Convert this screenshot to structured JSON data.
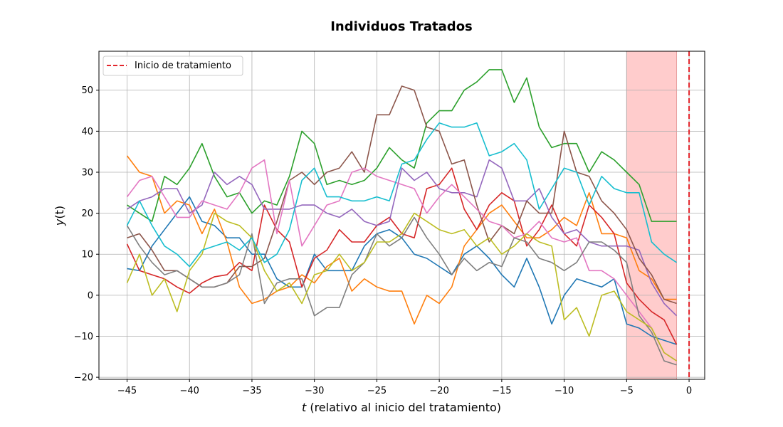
{
  "chart_data": {
    "type": "line",
    "title": "Individuos Tratados",
    "xlabel_var": "t",
    "xlabel_rest": " (relativo al inicio del tratamiento)",
    "ylabel_var": "y",
    "ylabel_rest": "(t)",
    "xlim": [
      -47.25,
      1.25
    ],
    "ylim": [
      -20.5,
      59.5
    ],
    "xticks": [
      -45,
      -40,
      -35,
      -30,
      -25,
      -20,
      -15,
      -10,
      -5,
      0
    ],
    "xtick_labels": [
      "−45",
      "−40",
      "−35",
      "−30",
      "−25",
      "−20",
      "−15",
      "−10",
      "−5",
      "0"
    ],
    "yticks": [
      -20,
      -10,
      0,
      10,
      20,
      30,
      40,
      50
    ],
    "ytick_labels": [
      "−20",
      "−10",
      "0",
      "10",
      "20",
      "30",
      "40",
      "50"
    ],
    "grid": true,
    "legend": {
      "placement": "top-left",
      "entries": [
        "Inicio de tratamiento"
      ]
    },
    "treatment_line": {
      "x": 0,
      "color": "#e3262c",
      "style": "dashed",
      "label": "Inicio de tratamiento"
    },
    "shaded_region": {
      "x": [
        -5,
        -1
      ],
      "color": "#ffcccc"
    },
    "x": [
      -45,
      -44,
      -43,
      -42,
      -41,
      -40,
      -39,
      -38,
      -37,
      -36,
      -35,
      -34,
      -33,
      -32,
      -31,
      -30,
      -29,
      -28,
      -27,
      -26,
      -25,
      -24,
      -23,
      -22,
      -21,
      -20,
      -19,
      -18,
      -17,
      -16,
      -15,
      -14,
      -13,
      -12,
      -11,
      -10,
      -9,
      -8,
      -7,
      -6,
      -5,
      -4,
      -3,
      -2,
      -1
    ],
    "series": [
      {
        "color": "#1f77b4",
        "values": [
          6.5,
          6,
          12,
          16,
          20,
          24,
          18,
          17,
          14,
          14,
          10,
          10,
          4,
          2,
          2,
          10,
          6,
          6,
          6,
          12,
          15,
          16,
          14,
          10,
          9,
          7,
          5,
          10,
          12,
          9,
          5,
          2,
          9,
          2,
          -7,
          0,
          4,
          3,
          2,
          4,
          -7,
          -8,
          -10,
          -11,
          -12
        ]
      },
      {
        "color": "#ff7f0e",
        "values": [
          34,
          30,
          29,
          20,
          23,
          22,
          15,
          21,
          13,
          2,
          -2,
          -1,
          1,
          2,
          5,
          3,
          7,
          9,
          1,
          4,
          2,
          1,
          1,
          -7,
          0,
          -2,
          2,
          12,
          16,
          20,
          22,
          18,
          14,
          14,
          16,
          19,
          17,
          25,
          15,
          15,
          14,
          6,
          4,
          -1,
          -1
        ]
      },
      {
        "color": "#2ca02c",
        "values": [
          22,
          20,
          18,
          29,
          27,
          31,
          37,
          29,
          24,
          25,
          20,
          23,
          22,
          29,
          40,
          37,
          27,
          28,
          27,
          28,
          31,
          36,
          33,
          31,
          42,
          45,
          45,
          50,
          52,
          55,
          55,
          47,
          53,
          41,
          36,
          37,
          37,
          30,
          35,
          33,
          30,
          27,
          18,
          18,
          18
        ]
      },
      {
        "color": "#d62728",
        "values": [
          12.5,
          6,
          5,
          4,
          2,
          0.5,
          3,
          4.5,
          5,
          8,
          6,
          22,
          16,
          13,
          2,
          9,
          11,
          16,
          13,
          13,
          17,
          19,
          15,
          14,
          26,
          27,
          31,
          21,
          16,
          22,
          25,
          23,
          12,
          16,
          22,
          15,
          12,
          22,
          19,
          15,
          3,
          -1,
          -4,
          -6,
          -12
        ]
      },
      {
        "color": "#9467bd",
        "values": [
          21,
          23,
          24,
          26,
          26,
          20,
          22,
          30,
          27,
          29,
          27,
          21,
          21,
          21,
          22,
          22,
          20,
          19,
          21,
          18,
          17,
          18,
          31,
          28,
          30,
          26,
          25,
          25,
          24,
          33,
          31,
          23,
          23,
          26,
          19,
          15,
          16,
          13,
          12,
          12,
          12,
          11,
          3,
          -2,
          -5
        ]
      },
      {
        "color": "#8c564b",
        "values": [
          14,
          15,
          11,
          6,
          6,
          4,
          2,
          2,
          3,
          7,
          7,
          9,
          18,
          28,
          30,
          27,
          30,
          31,
          35,
          30,
          44,
          44,
          51,
          50,
          41,
          40,
          32,
          33,
          22,
          13,
          17,
          15,
          23,
          20,
          20,
          40,
          30,
          29,
          23,
          20,
          16,
          9,
          5,
          -1,
          -2
        ]
      },
      {
        "color": "#e377c2",
        "values": [
          24,
          28,
          29,
          24,
          19,
          19,
          23,
          22,
          21,
          25,
          31,
          33,
          15,
          28,
          12,
          17,
          22,
          23,
          30,
          31,
          29,
          28,
          27,
          26,
          20,
          24,
          27,
          24,
          21,
          18,
          17,
          14,
          15,
          18,
          14,
          13,
          14,
          6,
          6,
          4,
          0,
          -4,
          -8,
          -14,
          -16
        ]
      },
      {
        "color": "#7f7f7f",
        "values": [
          17,
          12,
          8,
          5,
          6,
          4,
          2,
          2,
          3,
          5,
          15,
          -2,
          3,
          4,
          4,
          -5,
          -3,
          -3,
          5,
          8,
          15,
          12,
          14,
          19,
          14,
          10,
          5,
          9,
          6,
          8,
          7,
          14,
          13,
          9,
          8,
          6,
          8,
          13,
          13,
          11,
          8,
          -5,
          -9,
          -16,
          -17
        ]
      },
      {
        "color": "#bcbd22",
        "values": [
          3,
          10,
          0,
          4,
          -4,
          6,
          10,
          20,
          18,
          17,
          14,
          6,
          1,
          3,
          -2,
          5,
          6,
          10,
          6,
          8,
          13,
          13,
          15,
          20,
          18,
          16,
          15,
          16,
          12,
          14,
          10,
          12,
          15,
          13,
          12,
          -6,
          -3,
          -10,
          0,
          1,
          -4,
          -6,
          -8,
          -14,
          -16
        ]
      },
      {
        "color": "#17becf",
        "values": [
          17,
          23,
          17,
          12,
          10,
          7,
          11,
          12,
          13,
          11,
          14,
          8,
          10,
          16,
          28,
          31,
          24,
          24,
          23,
          23,
          24,
          23,
          32,
          33,
          38,
          42,
          41,
          41,
          42,
          34,
          35,
          37,
          33,
          21,
          26,
          31,
          30,
          22,
          29,
          26,
          25,
          25,
          13,
          10,
          8
        ]
      }
    ]
  }
}
